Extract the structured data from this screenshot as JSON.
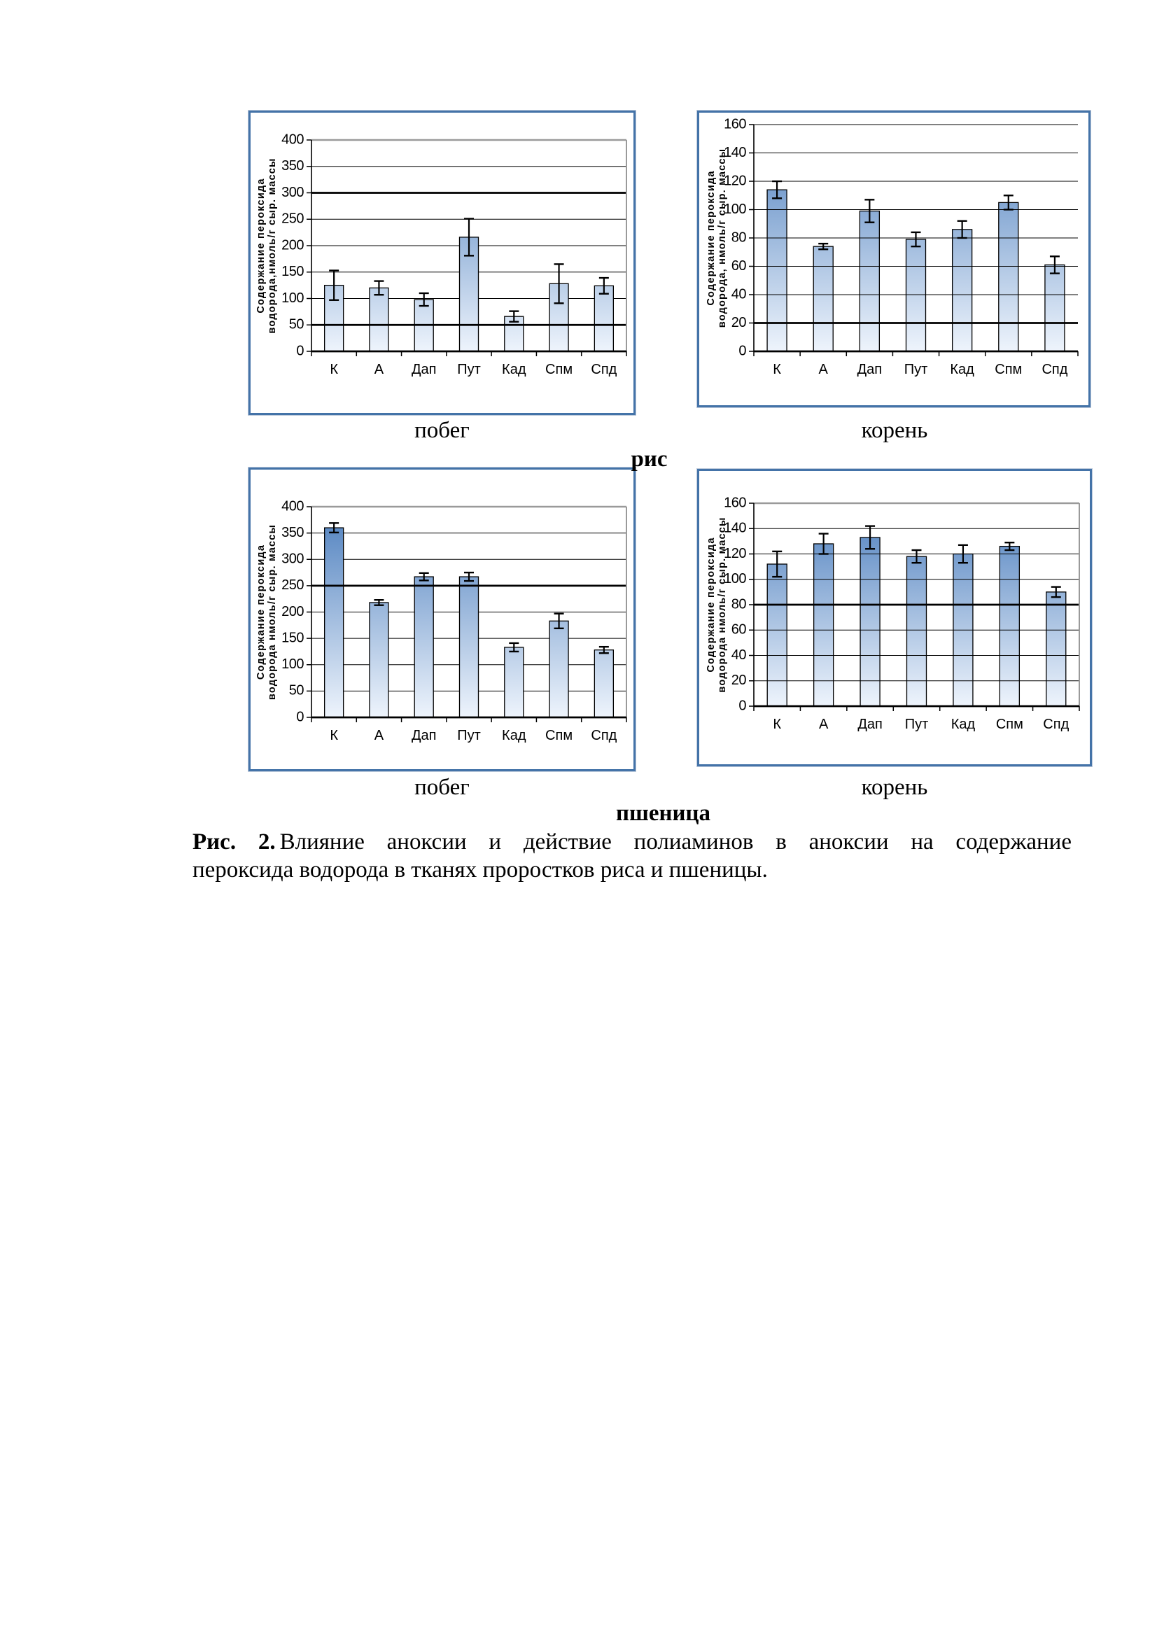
{
  "caption": {
    "label_bold": "Рис. 2.",
    "line1_rest": "Влияние аноксии и действие полиаминов в аноксии на содержание",
    "line2": "пероксида водорода в тканях проростков риса и пшеницы."
  },
  "group_labels": {
    "rice": "рис",
    "wheat": "пшеница"
  },
  "colors": {
    "frame_blue": "#4473a8",
    "bar_gradient_top": "#4d7fbe",
    "bar_gradient_bottom": "#eef4fc",
    "grid_black": "#000000",
    "grid_gray": "#9a9a9a"
  },
  "chart_data": [
    {
      "id": "rice-shoot",
      "type": "bar",
      "section_label": "побег",
      "ylabel_line1": "Содержание пероксида",
      "ylabel_line2": "водорода,нмоль/г сыр. массы",
      "categories": [
        "К",
        "А",
        "Дап",
        "Пут",
        "Кад",
        "Спм",
        "Спд"
      ],
      "values": [
        125,
        120,
        98,
        216,
        66,
        128,
        124
      ],
      "errors": [
        28,
        13,
        12,
        35,
        10,
        37,
        15
      ],
      "ylim": [
        0,
        400
      ],
      "ytick_step": 50,
      "thick_gridlines": [
        50,
        300
      ],
      "grid": true,
      "legend": "none"
    },
    {
      "id": "rice-root",
      "type": "bar",
      "section_label": "корень",
      "ylabel_line1": "Содержание пероксида",
      "ylabel_line2": "водорода, нмоль/г сыр. массы",
      "categories": [
        "К",
        "А",
        "Дап",
        "Пут",
        "Кад",
        "Спм",
        "Спд"
      ],
      "values": [
        114,
        74,
        99,
        79,
        86,
        105,
        61
      ],
      "errors": [
        6,
        2,
        8,
        5,
        6,
        5,
        6
      ],
      "ylim": [
        0,
        160
      ],
      "ytick_step": 20,
      "thick_gridlines": [
        20
      ],
      "grid": true,
      "legend": "none"
    },
    {
      "id": "wheat-shoot",
      "type": "bar",
      "section_label": "побег",
      "ylabel_line1": "Содержание пероксида",
      "ylabel_line2": "водорода нмоль/г сыр. массы",
      "categories": [
        "К",
        "А",
        "Дап",
        "Пут",
        "Кад",
        "Спм",
        "Спд"
      ],
      "values": [
        360,
        218,
        267,
        267,
        133,
        183,
        128
      ],
      "errors": [
        9,
        5,
        7,
        8,
        8,
        14,
        6
      ],
      "ylim": [
        0,
        400
      ],
      "ytick_step": 50,
      "thick_gridlines": [
        250
      ],
      "grid": true,
      "legend": "none"
    },
    {
      "id": "wheat-root",
      "type": "bar",
      "section_label": "корень",
      "ylabel_line1": "Содержание пероксида",
      "ylabel_line2": "водорода нмоль/г сыр. массы",
      "categories": [
        "К",
        "А",
        "Дап",
        "Пут",
        "Кад",
        "Спм",
        "Спд"
      ],
      "values": [
        112,
        128,
        133,
        118,
        120,
        126,
        90
      ],
      "errors": [
        10,
        8,
        9,
        5,
        7,
        3,
        4
      ],
      "ylim": [
        0,
        160
      ],
      "ytick_step": 20,
      "thick_gridlines": [
        80
      ],
      "grid": true,
      "legend": "none"
    }
  ]
}
